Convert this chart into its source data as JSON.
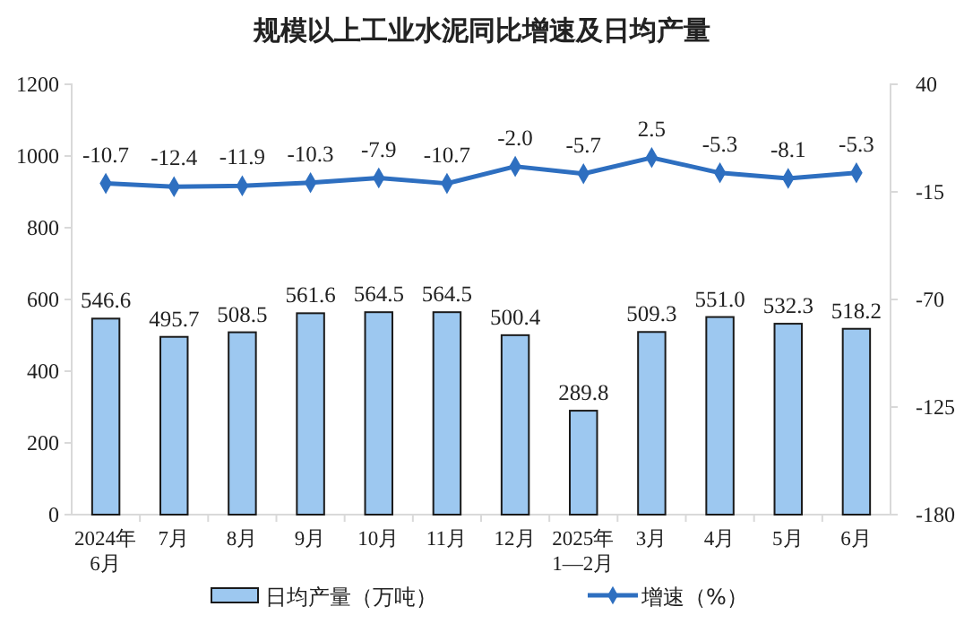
{
  "chart_data": {
    "type": "bar",
    "title": "规模以上工业水泥同比增速及日均产量",
    "categories": [
      "2024年\n6月",
      "7月",
      "8月",
      "9月",
      "10月",
      "11月",
      "12月",
      "2025年\n1—2月",
      "3月",
      "4月",
      "5月",
      "6月"
    ],
    "series": [
      {
        "name": "日均产量（万吨）",
        "color": "#9dc8f0",
        "values": [
          546.6,
          495.7,
          508.5,
          561.6,
          564.5,
          564.5,
          500.4,
          289.8,
          509.3,
          551.0,
          532.3,
          518.2
        ],
        "value_labels": [
          "546.6",
          "495.7",
          "508.5",
          "561.6",
          "564.5",
          "564.5",
          "500.4",
          "289.8",
          "509.3",
          "551.0",
          "532.3",
          "518.2"
        ]
      },
      {
        "name": "增速（%）",
        "type": "line",
        "axis": "y2",
        "color": "#2e6fc0",
        "marker": "diamond",
        "values": [
          -10.7,
          -12.4,
          -11.9,
          -10.3,
          -7.9,
          -10.7,
          -2.0,
          -5.7,
          2.5,
          -5.3,
          -8.1,
          -5.3
        ],
        "value_labels": [
          "-10.7",
          "-12.4",
          "-11.9",
          "-10.3",
          "-7.9",
          "-10.7",
          "-2.0",
          "-5.7",
          "2.5",
          "-5.3",
          "-8.1",
          "-5.3"
        ]
      }
    ],
    "ylim": [
      0,
      1200
    ],
    "yticks": [
      0,
      200,
      400,
      600,
      800,
      1000,
      1200
    ],
    "y2lim": [
      -180,
      40
    ],
    "y2ticks": [
      -180,
      -125,
      -70,
      -15,
      40
    ],
    "grid": false,
    "legend": "bottom"
  }
}
